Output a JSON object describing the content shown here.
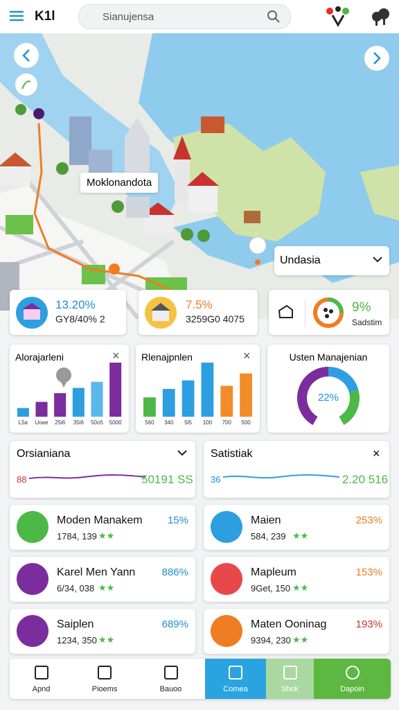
{
  "header": {
    "logo": "K1l",
    "search_placeholder": "Sianujensa"
  },
  "map": {
    "place_label": "Moklonandota",
    "region_select": "Undasia"
  },
  "stat_cards": [
    {
      "value": "13.20%",
      "detail": "GY8/40% 2"
    },
    {
      "value": "7.5%",
      "detail": "3259G0 4075"
    },
    {
      "value": "9%",
      "detail": "Sadstim"
    }
  ],
  "chart_data": [
    {
      "type": "bar",
      "title": "Alorajarleni",
      "categories": [
        "L5a",
        "Uoae",
        "25i6",
        "35i6",
        "50o5",
        "5000"
      ],
      "values": [
        10,
        17,
        27,
        33,
        40,
        62
      ],
      "colors": [
        "#2d9fe0",
        "#7b2d9e",
        "#7b2d9e",
        "#2d9fe0",
        "#5bb8ea",
        "#7b2d9e"
      ]
    },
    {
      "type": "bar",
      "title": "Rlenajpnlen",
      "categories": [
        "560",
        "340",
        "5l5",
        "100",
        "700",
        "500"
      ],
      "values": [
        25,
        36,
        47,
        70,
        40,
        56
      ],
      "colors": [
        "#4cb848",
        "#2d9fe0",
        "#2d9fe0",
        "#2d9fe0",
        "#f28c28",
        "#f28c28"
      ]
    },
    {
      "type": "pie",
      "title": "Usten Manajenian",
      "center_label": "22%",
      "values": [
        50,
        25,
        25
      ],
      "colors": [
        "#7b2d9e",
        "#2d9fe0",
        "#4cb848"
      ]
    }
  ],
  "trend_cards": [
    {
      "title": "Orsianiana",
      "start": "88",
      "end": "50191 SS"
    },
    {
      "title": "Satistiak",
      "start": "36",
      "end": "2.20 516"
    }
  ],
  "list": [
    {
      "name": "Moden Manakem",
      "detail": "1784, 139",
      "rating": "★★",
      "percent": "15%"
    },
    {
      "name": "Maien",
      "detail": "584, 239",
      "rating": "★★",
      "percent": "253%"
    },
    {
      "name": "Karel Men Yann",
      "detail": "6/34, 038",
      "rating": "★★",
      "percent": "886%"
    },
    {
      "name": "Mapleum",
      "detail": "9Get, 150",
      "rating": "★★",
      "percent": "153%"
    },
    {
      "name": "Saiplen",
      "detail": "1234, 350",
      "rating": "★★",
      "percent": "689%"
    },
    {
      "name": "Maten Ooninag",
      "detail": "9394, 230",
      "rating": "★★",
      "percent": "193%"
    }
  ],
  "nav": [
    "Apnd",
    "Pioems",
    "Bauoo",
    "Comea",
    "Shok",
    "Dapoin"
  ]
}
